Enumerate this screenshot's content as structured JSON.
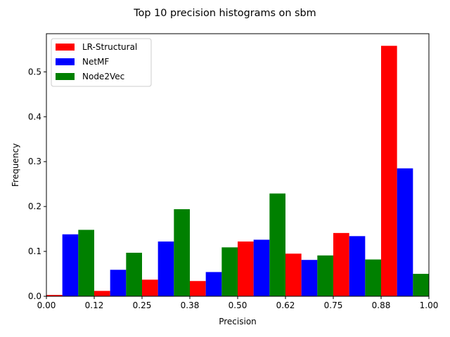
{
  "chart_data": {
    "type": "bar",
    "title": "Top 10 precision histograms on sbm",
    "xlabel": "Precision",
    "ylabel": "Frequency",
    "xlim": [
      0.0,
      1.0
    ],
    "ylim": [
      0.0,
      0.585
    ],
    "xticks": [
      0.0,
      0.125,
      0.25,
      0.375,
      0.5,
      0.625,
      0.75,
      0.875,
      1.0
    ],
    "xtick_labels": [
      "0.00",
      "0.12",
      "0.25",
      "0.38",
      "0.50",
      "0.62",
      "0.75",
      "0.88",
      "1.00"
    ],
    "yticks": [
      0.0,
      0.1,
      0.2,
      0.3,
      0.4,
      0.5
    ],
    "ytick_labels": [
      "0.0",
      "0.1",
      "0.2",
      "0.3",
      "0.4",
      "0.5"
    ],
    "bins": [
      [
        0.0,
        0.125
      ],
      [
        0.125,
        0.25
      ],
      [
        0.25,
        0.375
      ],
      [
        0.375,
        0.5
      ],
      [
        0.5,
        0.625
      ],
      [
        0.625,
        0.75
      ],
      [
        0.75,
        0.875
      ],
      [
        0.875,
        1.0
      ]
    ],
    "series": [
      {
        "name": "LR-Structural",
        "color": "#ff0000",
        "values": [
          0.003,
          0.012,
          0.037,
          0.034,
          0.122,
          0.095,
          0.141,
          0.558
        ]
      },
      {
        "name": "NetMF",
        "color": "#0000ff",
        "values": [
          0.138,
          0.059,
          0.122,
          0.054,
          0.126,
          0.081,
          0.134,
          0.285
        ]
      },
      {
        "name": "Node2Vec",
        "color": "#008000",
        "values": [
          0.148,
          0.097,
          0.194,
          0.109,
          0.229,
          0.091,
          0.082,
          0.05
        ]
      }
    ],
    "legend_position": "top-left",
    "grid": false
  }
}
